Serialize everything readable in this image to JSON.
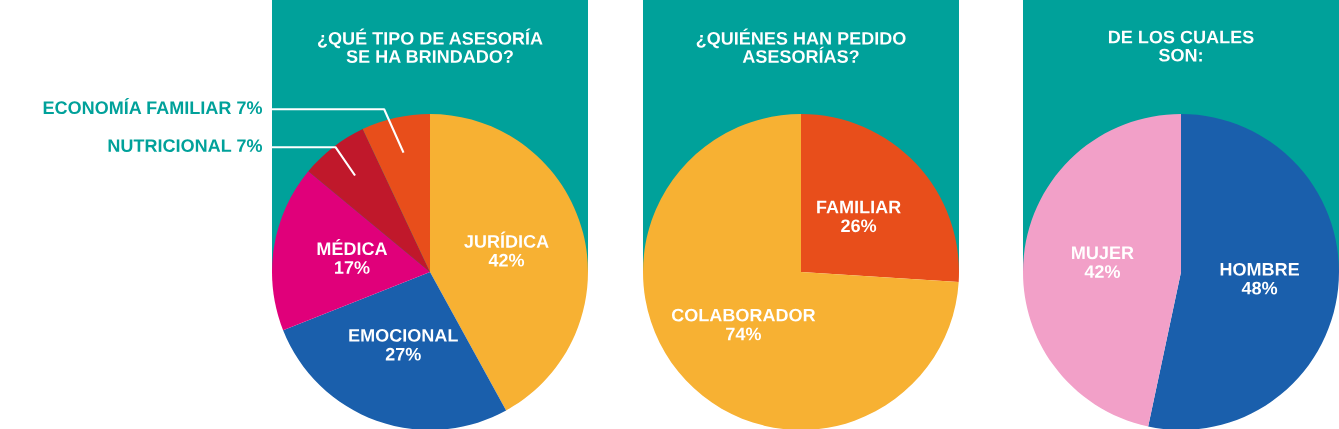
{
  "chart_data": [
    {
      "type": "pie",
      "title": "¿QUÉ TIPO DE ASESORÍA\nSE HA BRINDADO?",
      "categories": [
        "JURÍDICA",
        "EMOCIONAL",
        "MÉDICA",
        "NUTRICIONAL",
        "ECONOMÍA FAMILIAR"
      ],
      "values": [
        42,
        27,
        17,
        7,
        7
      ],
      "colors": [
        "#f7b133",
        "#1a5fac",
        "#e0007a",
        "#c0182b",
        "#e84e1b"
      ],
      "value_labels": [
        "42%",
        "27%",
        "17%",
        "7%",
        "7%"
      ]
    },
    {
      "type": "pie",
      "title": "¿QUIÉNES HAN PEDIDO\nASESORÍAS?",
      "categories": [
        "FAMILIAR",
        "COLABORADOR"
      ],
      "values": [
        26,
        74
      ],
      "colors": [
        "#e84e1b",
        "#f7b133"
      ],
      "value_labels": [
        "26%",
        "74%"
      ]
    },
    {
      "type": "pie",
      "title": "DE LOS CUALES\nSON:",
      "categories": [
        "HOMBRE",
        "MUJER"
      ],
      "values": [
        48,
        42
      ],
      "colors": [
        "#1a5fac",
        "#f2a0c8"
      ],
      "value_labels": [
        "48%",
        "42%"
      ]
    }
  ]
}
